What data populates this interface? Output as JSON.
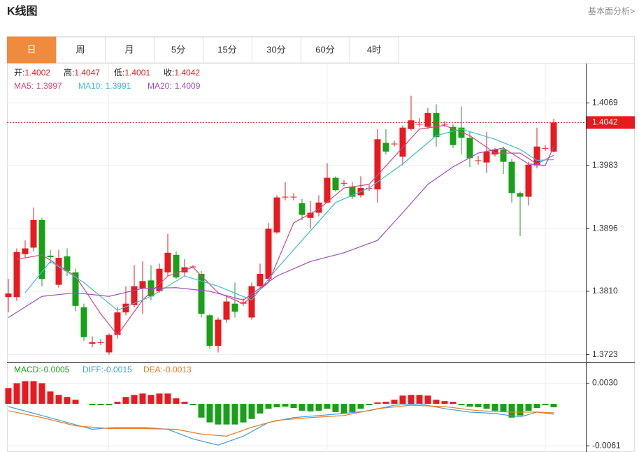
{
  "header": {
    "title": "K线图",
    "link": "基本面分析>"
  },
  "tabs": [
    "日",
    "周",
    "月",
    "5分",
    "15分",
    "30分",
    "60分",
    "4时"
  ],
  "active_tab": 0,
  "chart_data": {
    "type": "candlestick",
    "up_color": "#e8191f",
    "down_color": "#18a018",
    "ylim": [
      1.3713,
      1.4123
    ],
    "yticks": [
      1.4069,
      1.3983,
      1.3896,
      {
        "value": 1.381,
        "label": "1.3810"
      },
      1.3723
    ],
    "ohlc_labels": [
      "开:",
      "高:",
      "低:",
      "收:"
    ],
    "open": [
      1.3802,
      1.3802,
      1.3861,
      1.387,
      1.3908,
      1.3859,
      1.3819,
      1.3858,
      1.3836,
      1.3788,
      1.3738,
      1.374,
      1.3726,
      1.375,
      1.3781,
      1.3791,
      1.3814,
      1.3825,
      1.381,
      1.3836,
      1.386,
      1.3836,
      1.3844,
      1.3834,
      1.3777,
      1.3735,
      1.3771,
      1.3793,
      1.3793,
      1.3774,
      1.3817,
      1.3827,
      1.3891,
      1.394,
      1.394,
      1.3931,
      1.3911,
      1.3918,
      1.3932,
      1.3966,
      1.3959,
      1.3954,
      1.3942,
      1.3952,
      1.395,
      1.4014,
      1.4013,
      1.3995,
      1.4033,
      1.404,
      1.4036,
      1.4055,
      1.404,
      1.4036,
      1.4035,
      1.4021,
      1.399,
      1.3987,
      1.3998,
      1.4005,
      1.3988,
      1.3945,
      1.394,
      1.3983,
      1.4007,
      1.4002
    ],
    "high": [
      1.3827,
      1.3869,
      1.388,
      1.3925,
      1.3911,
      1.3867,
      1.3867,
      1.3869,
      1.3841,
      1.3793,
      1.3748,
      1.3744,
      1.3752,
      1.3788,
      1.3817,
      1.3846,
      1.3851,
      1.3846,
      1.3848,
      1.3889,
      1.3865,
      1.3854,
      1.3846,
      1.3838,
      1.3779,
      1.3774,
      1.3803,
      1.3822,
      1.38,
      1.3822,
      1.3848,
      1.3904,
      1.3942,
      1.396,
      1.3945,
      1.3937,
      1.3934,
      1.3942,
      1.3986,
      1.3968,
      1.3963,
      1.396,
      1.3968,
      1.3956,
      1.4033,
      1.4033,
      1.4017,
      1.4038,
      1.4079,
      1.4048,
      1.4062,
      1.4067,
      1.4044,
      1.404,
      1.4064,
      1.4029,
      1.3996,
      1.4029,
      1.4007,
      1.4009,
      1.3992,
      1.3947,
      1.3988,
      1.4035,
      1.4011,
      1.4047
    ],
    "low": [
      1.3781,
      1.3797,
      1.3856,
      1.3865,
      1.3817,
      1.3848,
      1.3815,
      1.3831,
      1.3783,
      1.3742,
      1.3733,
      1.3736,
      1.3723,
      1.3745,
      1.3777,
      1.3788,
      1.3779,
      1.3798,
      1.3808,
      1.3831,
      1.3827,
      1.3831,
      1.3842,
      1.3774,
      1.3731,
      1.3726,
      1.3767,
      1.3774,
      1.379,
      1.3771,
      1.3814,
      1.3824,
      1.3889,
      1.3935,
      1.3935,
      1.3908,
      1.3896,
      1.3913,
      1.3931,
      1.3947,
      1.3955,
      1.3937,
      1.3939,
      1.3948,
      1.3932,
      1.3998,
      1.4009,
      1.3983,
      1.4031,
      1.4036,
      1.4033,
      1.4009,
      1.4036,
      1.4007,
      1.3998,
      1.3981,
      1.3984,
      1.3973,
      1.3995,
      1.3971,
      1.3932,
      1.3886,
      1.3928,
      1.3979,
      1.4003,
      1.4001
    ],
    "close": [
      1.3807,
      1.3864,
      1.3869,
      1.3908,
      1.3827,
      1.3857,
      1.3856,
      1.3838,
      1.379,
      1.3747,
      1.374,
      1.374,
      1.375,
      1.3781,
      1.3793,
      1.3817,
      1.3824,
      1.3803,
      1.3841,
      1.3863,
      1.3829,
      1.3843,
      1.3844,
      1.3779,
      1.3735,
      1.3771,
      1.3796,
      1.3782,
      1.3795,
      1.3817,
      1.3834,
      1.3896,
      1.3939,
      1.394,
      1.394,
      1.3915,
      1.3918,
      1.3932,
      1.3966,
      1.3949,
      1.3959,
      1.394,
      1.3952,
      1.3952,
      1.4019,
      1.4002,
      1.4013,
      1.4035,
      1.4045,
      1.404,
      1.4055,
      1.4022,
      1.404,
      1.4011,
      1.4021,
      1.3993,
      1.399,
      1.4002,
      1.4005,
      1.3988,
      1.3945,
      1.394,
      1.3984,
      1.4009,
      1.4007,
      1.4042
    ],
    "ma": [
      {
        "name": "MA5:",
        "color": "#e0457b",
        "x": [
          1,
          4,
          8,
          11,
          13,
          16,
          19,
          22,
          25,
          28,
          31,
          34,
          37,
          40,
          43,
          46,
          49,
          52,
          55,
          58,
          61,
          63,
          65
        ],
        "values": [
          1.3854,
          1.386,
          1.3831,
          1.3779,
          1.375,
          1.3798,
          1.3831,
          1.3843,
          1.3808,
          1.3793,
          1.3822,
          1.3904,
          1.3923,
          1.3952,
          1.3957,
          1.3995,
          1.4033,
          1.4038,
          1.4024,
          1.4,
          1.4,
          1.3985,
          1.3997
        ]
      },
      {
        "name": "MA10:",
        "color": "#3cbfd4",
        "x": [
          2,
          5,
          9,
          13,
          17,
          21,
          25,
          29,
          32,
          35,
          39,
          43,
          47,
          51,
          54,
          58,
          61,
          63,
          65
        ],
        "values": [
          1.3808,
          1.3851,
          1.3822,
          1.3784,
          1.3803,
          1.3831,
          1.3817,
          1.3798,
          1.3841,
          1.388,
          1.3932,
          1.3952,
          1.3985,
          1.4024,
          1.4033,
          1.4019,
          1.4005,
          1.399,
          1.3991
        ]
      },
      {
        "name": "MA20:",
        "color": "#a04fc0",
        "x": [
          0,
          4,
          8,
          12,
          16,
          20,
          24,
          28,
          32,
          36,
          40,
          44,
          47,
          50,
          53,
          56,
          59,
          62,
          64,
          65
        ],
        "values": [
          1.3774,
          1.3803,
          1.3808,
          1.3803,
          1.3814,
          1.3815,
          1.381,
          1.3798,
          1.3831,
          1.3851,
          1.3863,
          1.388,
          1.3918,
          1.3957,
          1.3981,
          1.4,
          1.4007,
          1.3985,
          1.3983,
          1.4009
        ]
      }
    ],
    "macd": {
      "ylim": [
        -0.007,
        0.006
      ],
      "yticks": [
        {
          "value": 0.003,
          "label": "0.0030"
        },
        -0.0061
      ],
      "name": "MACD:",
      "color": "#18a018",
      "values": [
        0.0023,
        0.003,
        0.0033,
        0.0033,
        0.003,
        0.0018,
        0.0013,
        0.001,
        0.0006,
        0,
        -0.0002,
        -0.0002,
        -0.0002,
        0.0003,
        0.001,
        0.0013,
        0.0015,
        0.0013,
        0.0015,
        0.0015,
        0.0008,
        0.0003,
        -0.0002,
        -0.002,
        -0.0027,
        -0.003,
        -0.003,
        -0.003,
        -0.0027,
        -0.0022,
        -0.0014,
        -0.0007,
        -0.0005,
        -0.0004,
        -0.0006,
        -0.001,
        -0.0011,
        -0.001,
        -0.0007,
        -0.0012,
        -0.0014,
        -0.0012,
        -0.0007,
        -0.0002,
        0.0002,
        0.0003,
        0.0006,
        0.0012,
        0.0013,
        0.0013,
        0.0012,
        0.0006,
        0.0004,
        0.0003,
        -0.0002,
        -0.0004,
        -0.0005,
        -0.0007,
        -0.001,
        -0.0012,
        -0.002,
        -0.0017,
        -0.001,
        -0.0006,
        -0.0002,
        -0.0005
      ],
      "lines": [
        {
          "name": "DIFF:",
          "color": "#3a9ee8",
          "x": [
            0,
            4,
            7,
            10,
            13,
            16,
            19,
            22,
            25,
            28,
            31,
            34,
            37,
            40,
            43,
            46,
            49,
            52,
            55,
            58,
            61,
            63,
            65
          ],
          "values": [
            -0.0004,
            -0.0017,
            -0.0027,
            -0.0037,
            -0.0034,
            -0.0034,
            -0.0037,
            -0.0051,
            -0.006,
            -0.0047,
            -0.0027,
            -0.002,
            -0.0017,
            -0.0014,
            -0.001,
            -0.0002,
            0,
            -0.0007,
            -0.0012,
            -0.0014,
            -0.0019,
            -0.0012,
            -0.0015
          ]
        },
        {
          "name": "DEA:",
          "color": "#f07b18",
          "x": [
            0,
            4,
            8,
            12,
            16,
            20,
            23,
            26,
            29,
            32,
            36,
            40,
            44,
            48,
            52,
            56,
            60,
            63,
            65
          ],
          "values": [
            -0.001,
            -0.002,
            -0.0032,
            -0.0036,
            -0.0036,
            -0.0037,
            -0.0044,
            -0.0047,
            -0.0034,
            -0.0024,
            -0.002,
            -0.0017,
            -0.0007,
            -0.0002,
            -0.0004,
            -0.001,
            -0.0012,
            -0.0012,
            -0.0013
          ]
        }
      ]
    }
  }
}
